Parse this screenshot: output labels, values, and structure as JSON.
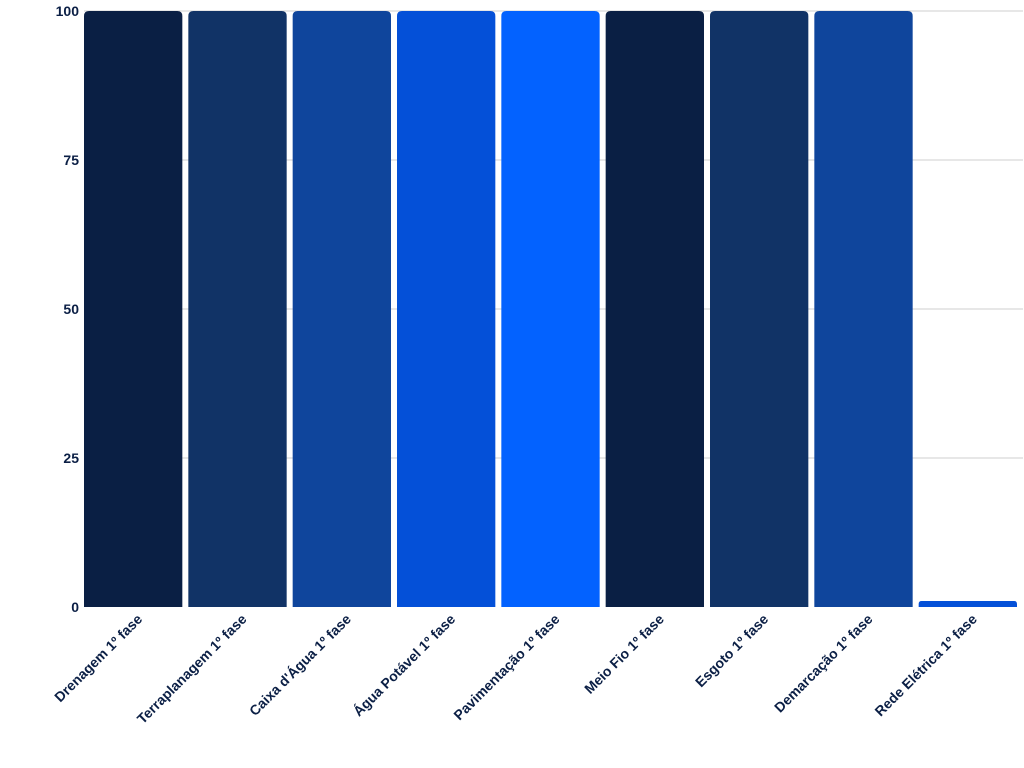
{
  "chart_data": {
    "type": "bar",
    "title": "",
    "xlabel": "",
    "ylabel": "",
    "ylim": [
      0,
      100
    ],
    "yticks": [
      0,
      25,
      50,
      75,
      100
    ],
    "grid": true,
    "categories": [
      "Drenagem 1º fase",
      "Terraplanagem 1º fase",
      "Caixa d'Água 1º fase",
      "Água Potável 1º fase",
      "Pavimentação 1º fase",
      "Meio Fio 1º fase",
      "Esgoto 1º fase",
      "Demarcação 1º fase",
      "Rede Elétrica 1º fase"
    ],
    "values": [
      100,
      100,
      100,
      100,
      100,
      100,
      100,
      100,
      1
    ],
    "bar_colors": [
      "#0a1f44",
      "#113366",
      "#0f459c",
      "#0450d8",
      "#0362ff",
      "#0a1f44",
      "#113366",
      "#0f459c",
      "#0450d8"
    ]
  }
}
